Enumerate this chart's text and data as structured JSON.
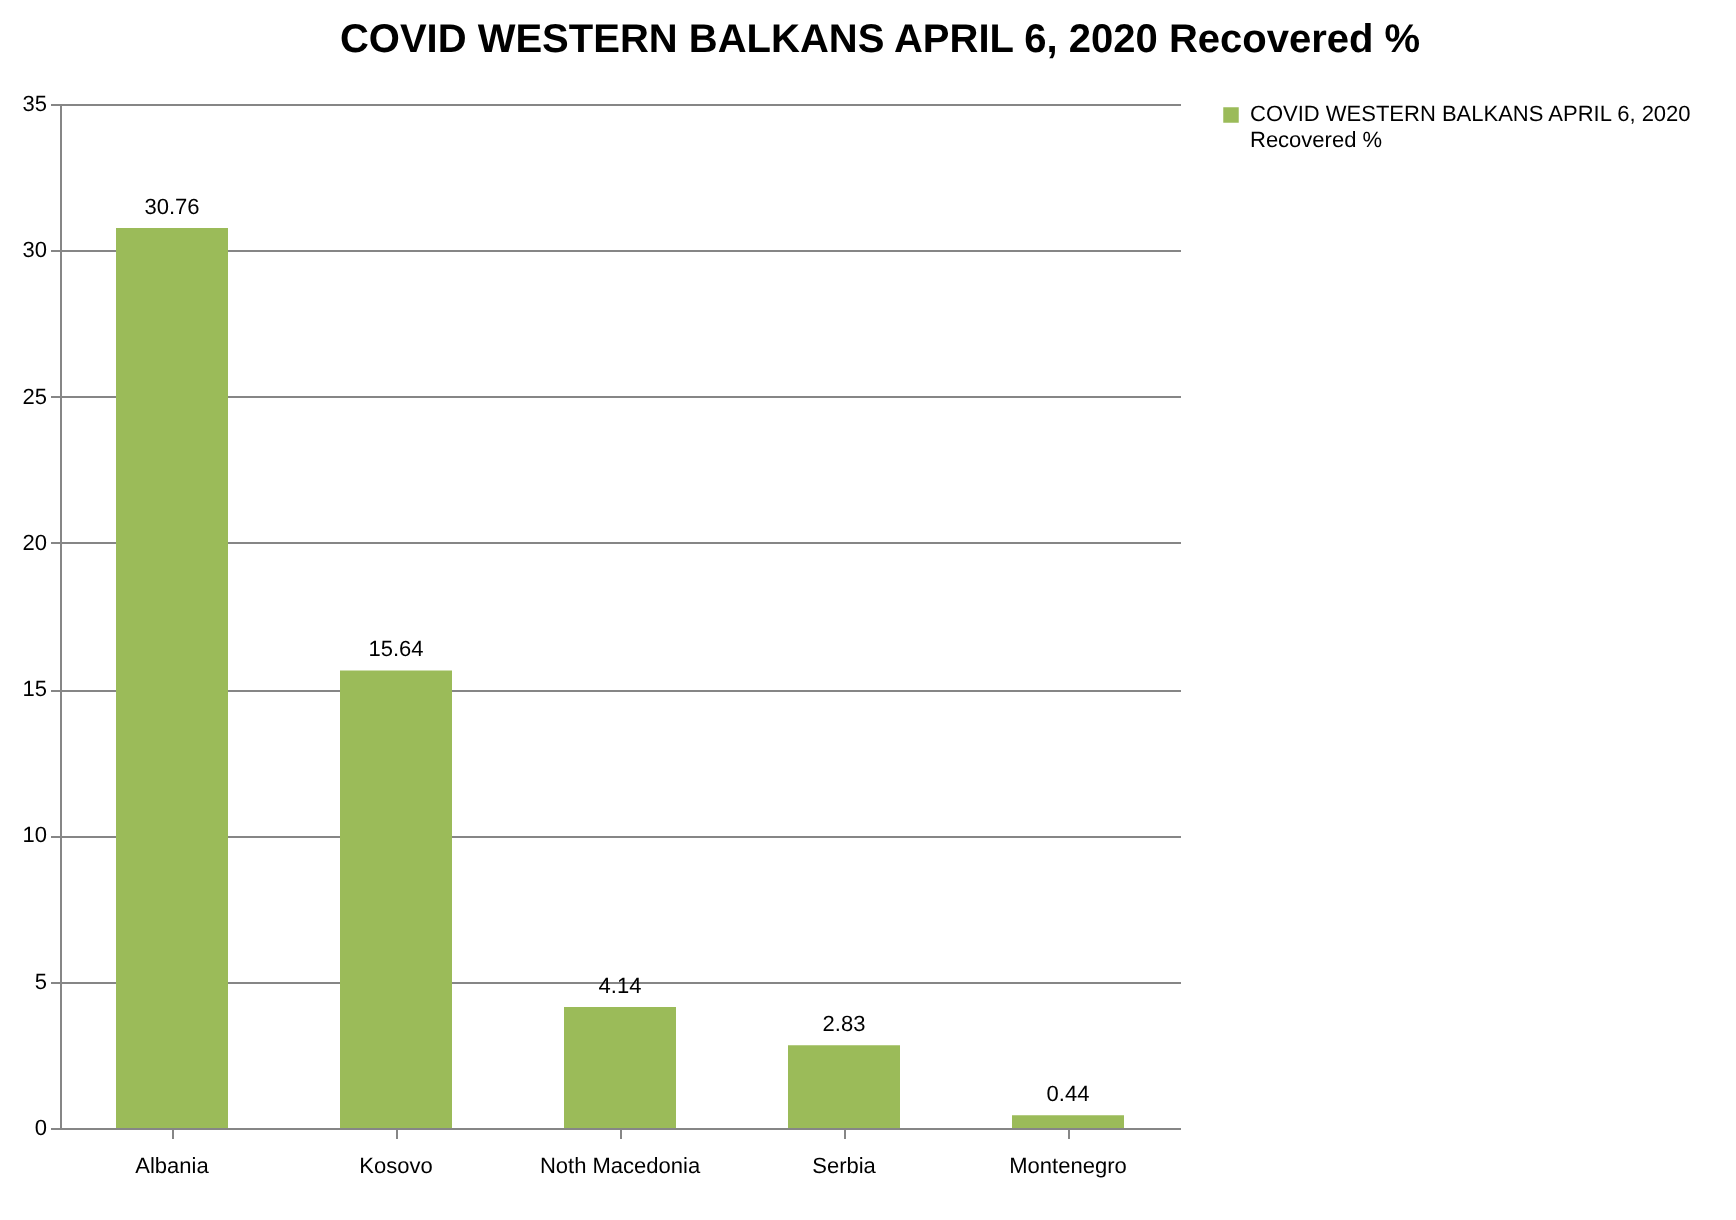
{
  "chart_data": {
    "type": "bar",
    "title": "COVID WESTERN BALKANS APRIL 6, 2020 Recovered %",
    "categories": [
      "Albania",
      "Kosovo",
      "Noth Macedonia",
      "Serbia",
      "Montenegro"
    ],
    "series": [
      {
        "name": "COVID WESTERN BALKANS APRIL 6, 2020 Recovered %",
        "color": "#9bbb59",
        "values": [
          30.76,
          15.64,
          4.14,
          2.83,
          0.44
        ]
      }
    ],
    "ylim": [
      0,
      35
    ],
    "yticks": [
      0,
      5,
      10,
      15,
      20,
      25,
      30,
      35
    ],
    "grid": "y",
    "legend": "right",
    "data_labels": true
  }
}
